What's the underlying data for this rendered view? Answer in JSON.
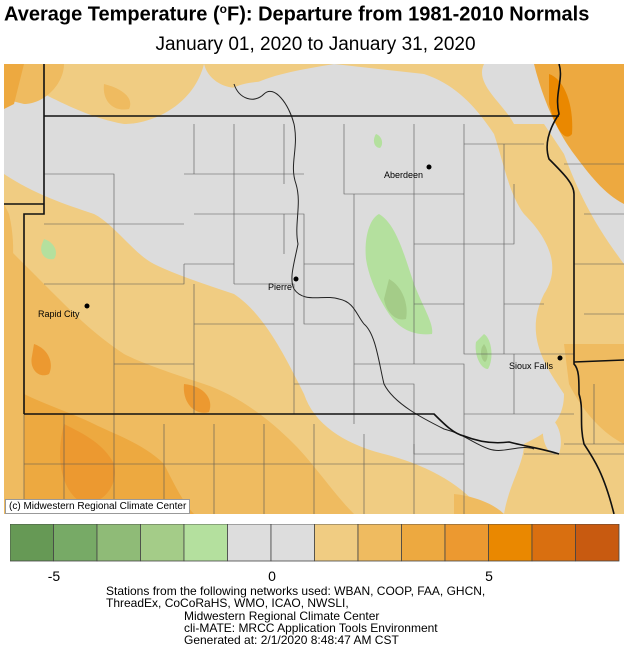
{
  "title": {
    "main": "Average Temperature (",
    "deg": "o",
    "rest": "F): Departure from 1981-2010 Normals"
  },
  "subtitle": "January 01, 2020 to January 31, 2020",
  "credit": "(c) Midwestern Regional Climate Center",
  "cities": [
    {
      "name": "Aberdeen"
    },
    {
      "name": "Pierre"
    },
    {
      "name": "Rapid City"
    },
    {
      "name": "Sioux Falls"
    }
  ],
  "legend": {
    "colors": [
      "#669955",
      "#77aa66",
      "#8fbb77",
      "#a4cc88",
      "#b4e09e",
      "#dddddd",
      "#dddddd",
      "#f0cc82",
      "#efbb60",
      "#eda940",
      "#ec9930",
      "#ea8800",
      "#d96f10",
      "#c85a10"
    ],
    "ticks": [
      {
        "label": "-5"
      },
      {
        "label": "0"
      },
      {
        "label": "5"
      }
    ]
  },
  "footer": {
    "line1": "Stations from the following networks used: WBAN, COOP, FAA, GHCN,",
    "line2": "ThreadEx, CoCoRaHS, WMO, ICAO, NWSLI,",
    "line3": "Midwestern Regional Climate Center",
    "line4": "cli-MATE: MRCC Application Tools Environment",
    "line5": "Generated at: 2/1/2020 8:48:47 AM CST"
  }
}
